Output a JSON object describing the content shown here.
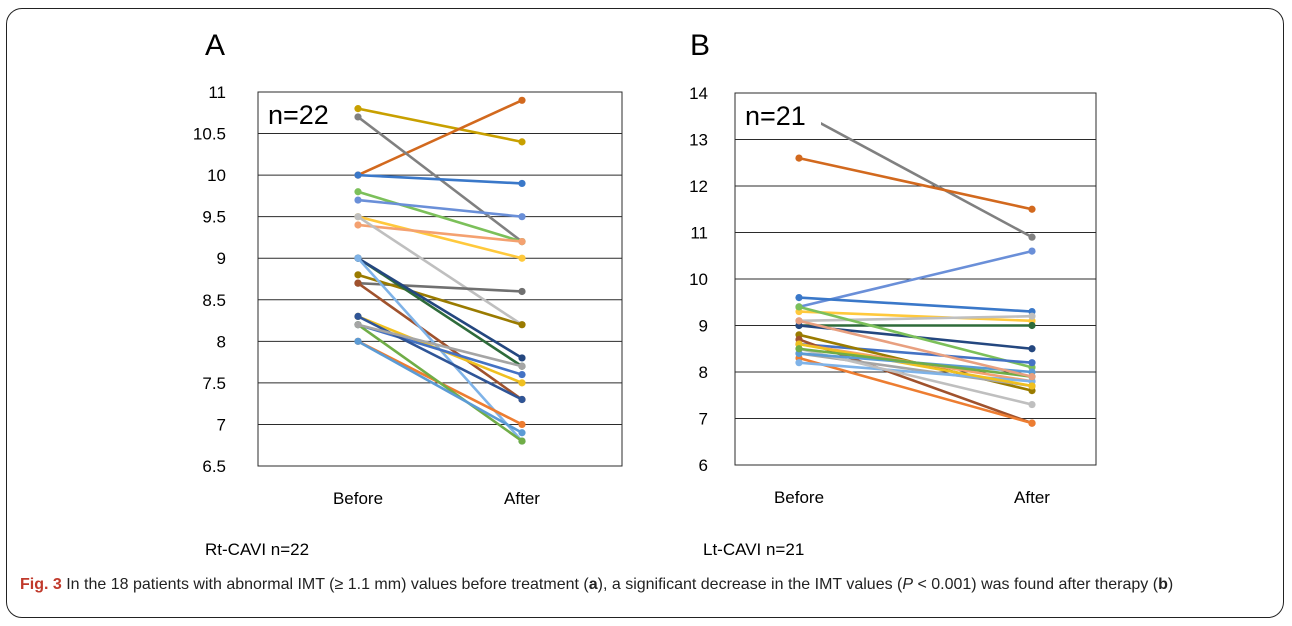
{
  "chart_data": [
    {
      "type": "line",
      "panel_letter": "A",
      "subtitle": "Rt-CAVI n=22",
      "annotation": "n=22",
      "categories": [
        "Before",
        "After"
      ],
      "ylim": [
        6.5,
        11
      ],
      "yticks": [
        "6.5",
        "7",
        "7.5",
        "8",
        "8.5",
        "9",
        "9.5",
        "10",
        "10.5",
        "11"
      ],
      "grid": true,
      "series": [
        {
          "values": [
            10.8,
            10.4
          ],
          "color": "#C8A000"
        },
        {
          "values": [
            10.0,
            10.9
          ],
          "color": "#D2691E"
        },
        {
          "values": [
            10.7,
            9.2
          ],
          "color": "#808080"
        },
        {
          "values": [
            10.0,
            9.9
          ],
          "color": "#3A78C9"
        },
        {
          "values": [
            9.8,
            9.2
          ],
          "color": "#7CC05A"
        },
        {
          "values": [
            9.7,
            9.5
          ],
          "color": "#6A8FD8"
        },
        {
          "values": [
            9.5,
            9.0
          ],
          "color": "#FFC93C"
        },
        {
          "values": [
            9.4,
            9.2
          ],
          "color": "#F4A170"
        },
        {
          "values": [
            9.5,
            8.2
          ],
          "color": "#BFBFBF"
        },
        {
          "values": [
            8.7,
            8.6
          ],
          "color": "#707070"
        },
        {
          "values": [
            8.8,
            8.2
          ],
          "color": "#9A7B00"
        },
        {
          "values": [
            9.0,
            7.7
          ],
          "color": "#2E6B3A"
        },
        {
          "values": [
            9.0,
            7.8
          ],
          "color": "#24477F"
        },
        {
          "values": [
            8.7,
            7.3
          ],
          "color": "#A0522D"
        },
        {
          "values": [
            9.0,
            6.8
          ],
          "color": "#7FB3E8"
        },
        {
          "values": [
            8.3,
            7.5
          ],
          "color": "#F0C020"
        },
        {
          "values": [
            8.2,
            7.6
          ],
          "color": "#4472C4"
        },
        {
          "values": [
            8.3,
            7.3
          ],
          "color": "#2F5597"
        },
        {
          "values": [
            8.0,
            7.0
          ],
          "color": "#ED7D31"
        },
        {
          "values": [
            8.2,
            6.8
          ],
          "color": "#70AD47"
        },
        {
          "values": [
            8.0,
            6.9
          ],
          "color": "#5B9BD5"
        },
        {
          "values": [
            8.2,
            7.7
          ],
          "color": "#A5A5A5"
        }
      ]
    },
    {
      "type": "line",
      "panel_letter": "B",
      "subtitle": "Lt-CAVI n=21",
      "annotation": "n=21",
      "categories": [
        "Before",
        "After"
      ],
      "ylim": [
        6,
        14
      ],
      "yticks": [
        "6",
        "7",
        "8",
        "9",
        "10",
        "11",
        "12",
        "13",
        "14"
      ],
      "grid": true,
      "series": [
        {
          "values": [
            13.6,
            10.9
          ],
          "color": "#808080"
        },
        {
          "values": [
            12.6,
            11.5
          ],
          "color": "#D2691E"
        },
        {
          "values": [
            9.4,
            10.6
          ],
          "color": "#6A8FD8"
        },
        {
          "values": [
            9.6,
            9.3
          ],
          "color": "#3A78C9"
        },
        {
          "values": [
            9.3,
            9.1
          ],
          "color": "#FFC93C"
        },
        {
          "values": [
            9.1,
            9.2
          ],
          "color": "#BFBFBF"
        },
        {
          "values": [
            9.0,
            9.0
          ],
          "color": "#2E6B3A"
        },
        {
          "values": [
            9.0,
            8.5
          ],
          "color": "#24477F"
        },
        {
          "values": [
            9.4,
            8.1
          ],
          "color": "#7CC05A"
        },
        {
          "values": [
            8.6,
            8.2
          ],
          "color": "#4472C4"
        },
        {
          "values": [
            8.8,
            7.6
          ],
          "color": "#9A7B00"
        },
        {
          "values": [
            8.7,
            6.9
          ],
          "color": "#A0522D"
        },
        {
          "values": [
            8.3,
            6.9
          ],
          "color": "#ED7D31"
        },
        {
          "values": [
            8.6,
            7.8
          ],
          "color": "#F4A170"
        },
        {
          "values": [
            8.4,
            7.7
          ],
          "color": "#A5A5A5"
        },
        {
          "values": [
            8.2,
            7.8
          ],
          "color": "#7FB3E8"
        },
        {
          "values": [
            8.5,
            7.3
          ],
          "color": "#BFBFBF"
        },
        {
          "values": [
            8.6,
            7.7
          ],
          "color": "#F0C020"
        },
        {
          "values": [
            8.4,
            8.0
          ],
          "color": "#5B9BD5"
        },
        {
          "values": [
            8.5,
            7.9
          ],
          "color": "#70AD47"
        },
        {
          "values": [
            9.1,
            7.9
          ],
          "color": "#E8A080"
        }
      ]
    }
  ],
  "caption": {
    "label": "Fig. 3",
    "part1": " In the 18 patients with abnormal IMT (≥ 1.1 mm) values before treatment (",
    "a": "a",
    "part2": "), a significant decrease in the IMT values (",
    "p": "P",
    "part3": " < 0.001) was found after therapy (",
    "b": "b",
    "part4": ")"
  }
}
